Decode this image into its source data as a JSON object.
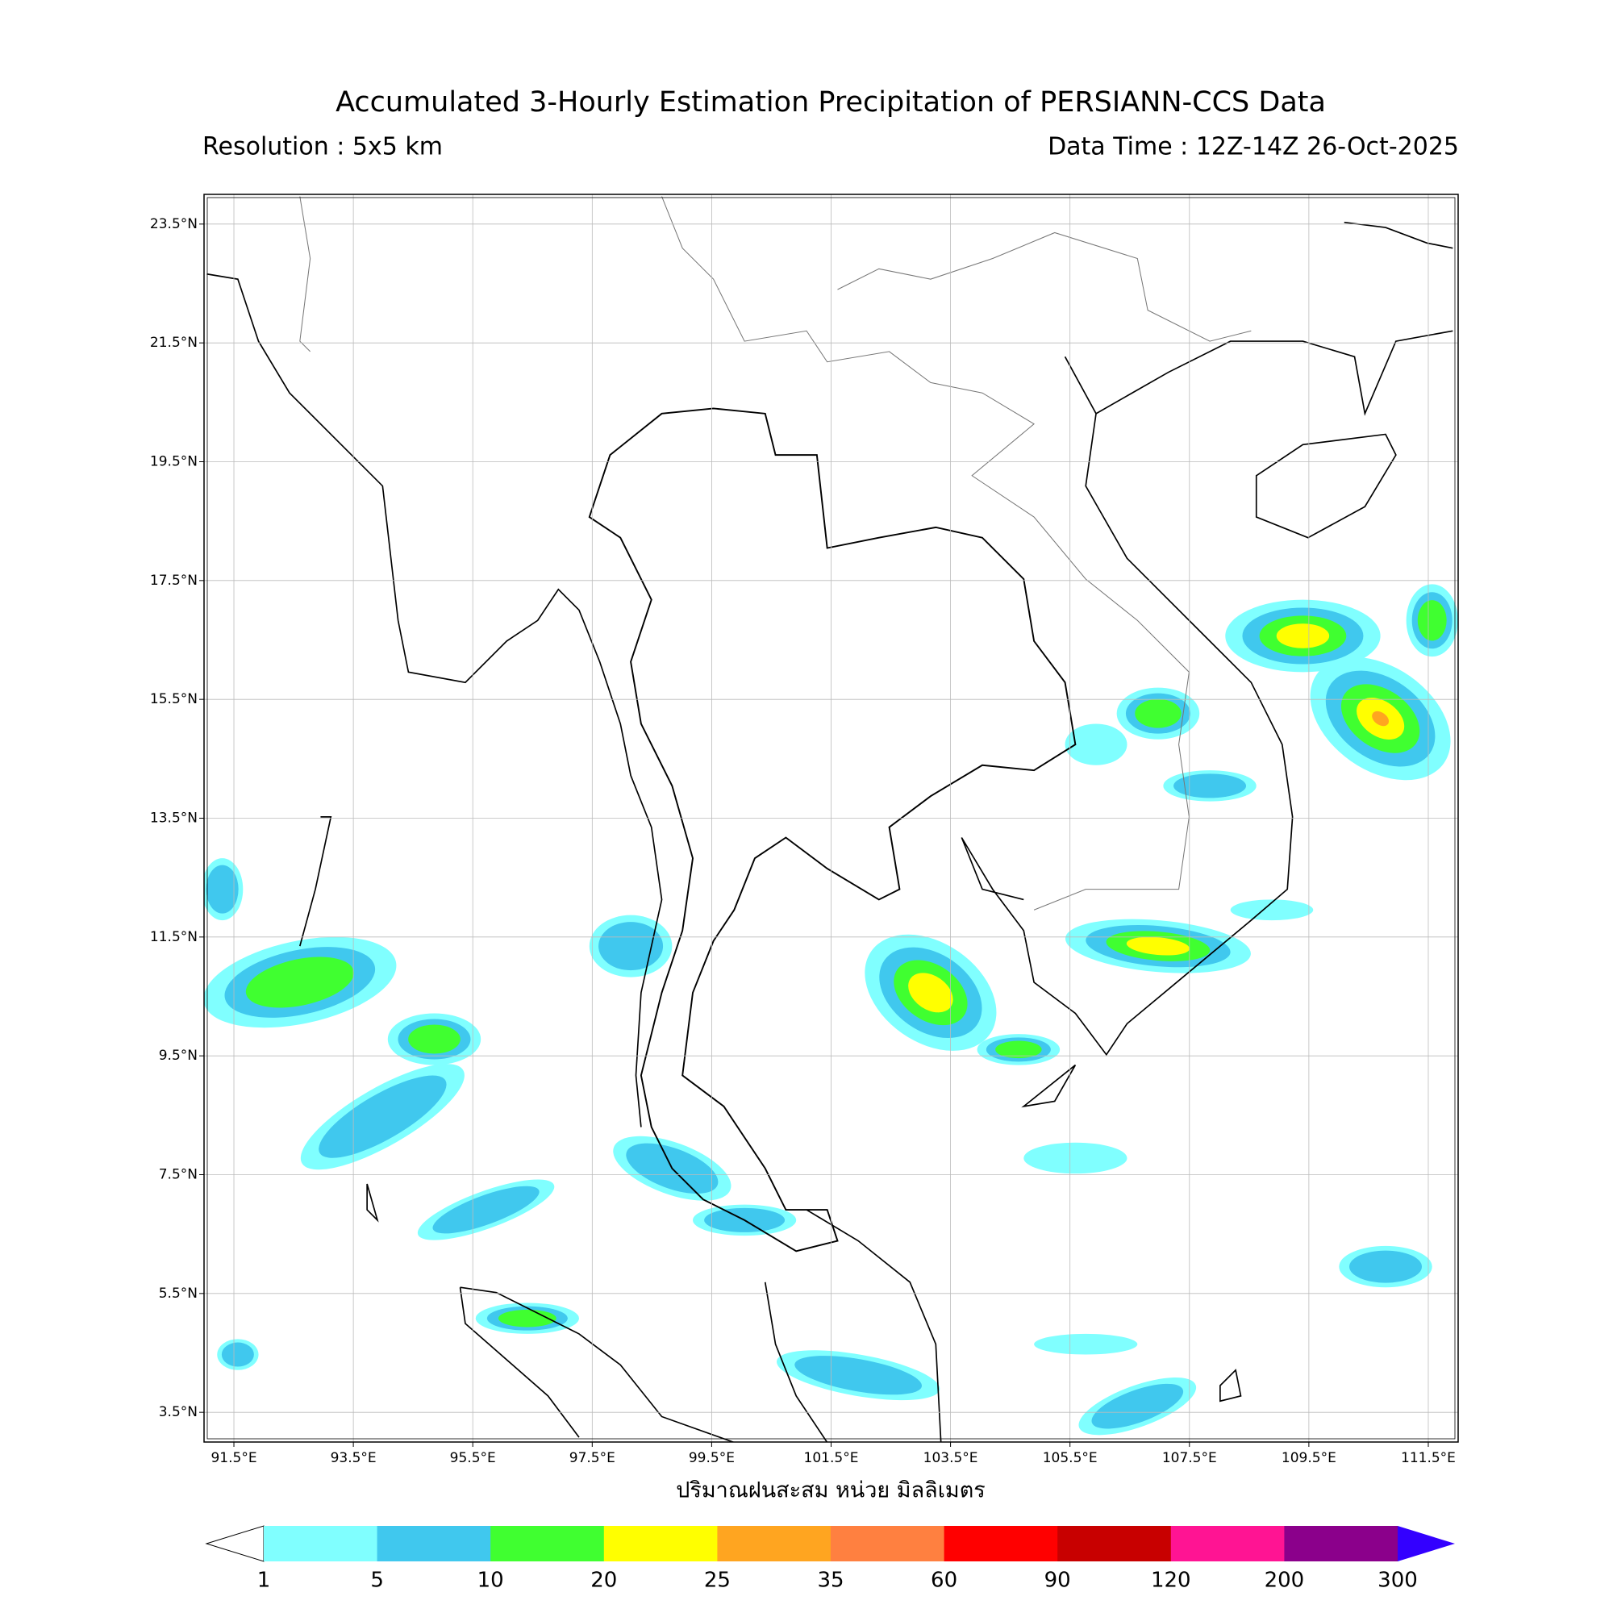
{
  "title": "Accumulated 3-Hourly Estimation Precipitation of PERSIANN-CCS Data",
  "resolution": "Resolution : 5x5 km",
  "data_time": "Data Time : 12Z-14Z 26-Oct-2025",
  "map": {
    "lonlim": [
      91,
      112
    ],
    "latlim": [
      3,
      24
    ],
    "lonticks": [
      {
        "value": 91.5,
        "label": "91.5°E"
      },
      {
        "value": 93.5,
        "label": "93.5°E"
      },
      {
        "value": 95.5,
        "label": "95.5°E"
      },
      {
        "value": 97.5,
        "label": "97.5°E"
      },
      {
        "value": 99.5,
        "label": "99.5°E"
      },
      {
        "value": 101.5,
        "label": "101.5°E"
      },
      {
        "value": 103.5,
        "label": "103.5°E"
      },
      {
        "value": 105.5,
        "label": "105.5°E"
      },
      {
        "value": 107.5,
        "label": "107.5°E"
      },
      {
        "value": 109.5,
        "label": "109.5°E"
      },
      {
        "value": 111.5,
        "label": "111.5°E"
      }
    ],
    "latticks": [
      {
        "value": 3.5,
        "label": "3.5°N"
      },
      {
        "value": 5.5,
        "label": "5.5°N"
      },
      {
        "value": 7.5,
        "label": "7.5°N"
      },
      {
        "value": 9.5,
        "label": "9.5°N"
      },
      {
        "value": 11.5,
        "label": "11.5°N"
      },
      {
        "value": 13.5,
        "label": "13.5°N"
      },
      {
        "value": 15.5,
        "label": "15.5°N"
      },
      {
        "value": 17.5,
        "label": "17.5°N"
      },
      {
        "value": 19.5,
        "label": "19.5°N"
      },
      {
        "value": 21.5,
        "label": "21.5°N"
      },
      {
        "value": 23.5,
        "label": "23.5°N"
      }
    ],
    "grid": true,
    "xlabel": "ปริมาณฝนสะสม หน่วย มิลลิเมตร"
  },
  "colorbar": {
    "levels": [
      1,
      5,
      10,
      20,
      25,
      35,
      60,
      90,
      120,
      200,
      300
    ],
    "colors": [
      "#80ffff",
      "#40c8ee",
      "#40ff30",
      "#ffff00",
      "#ffa520",
      "#ff8040",
      "#ff0000",
      "#c80000",
      "#ff1493",
      "#8b008b"
    ],
    "under_color": "#ffffff",
    "over_color": "#3300ff"
  }
}
